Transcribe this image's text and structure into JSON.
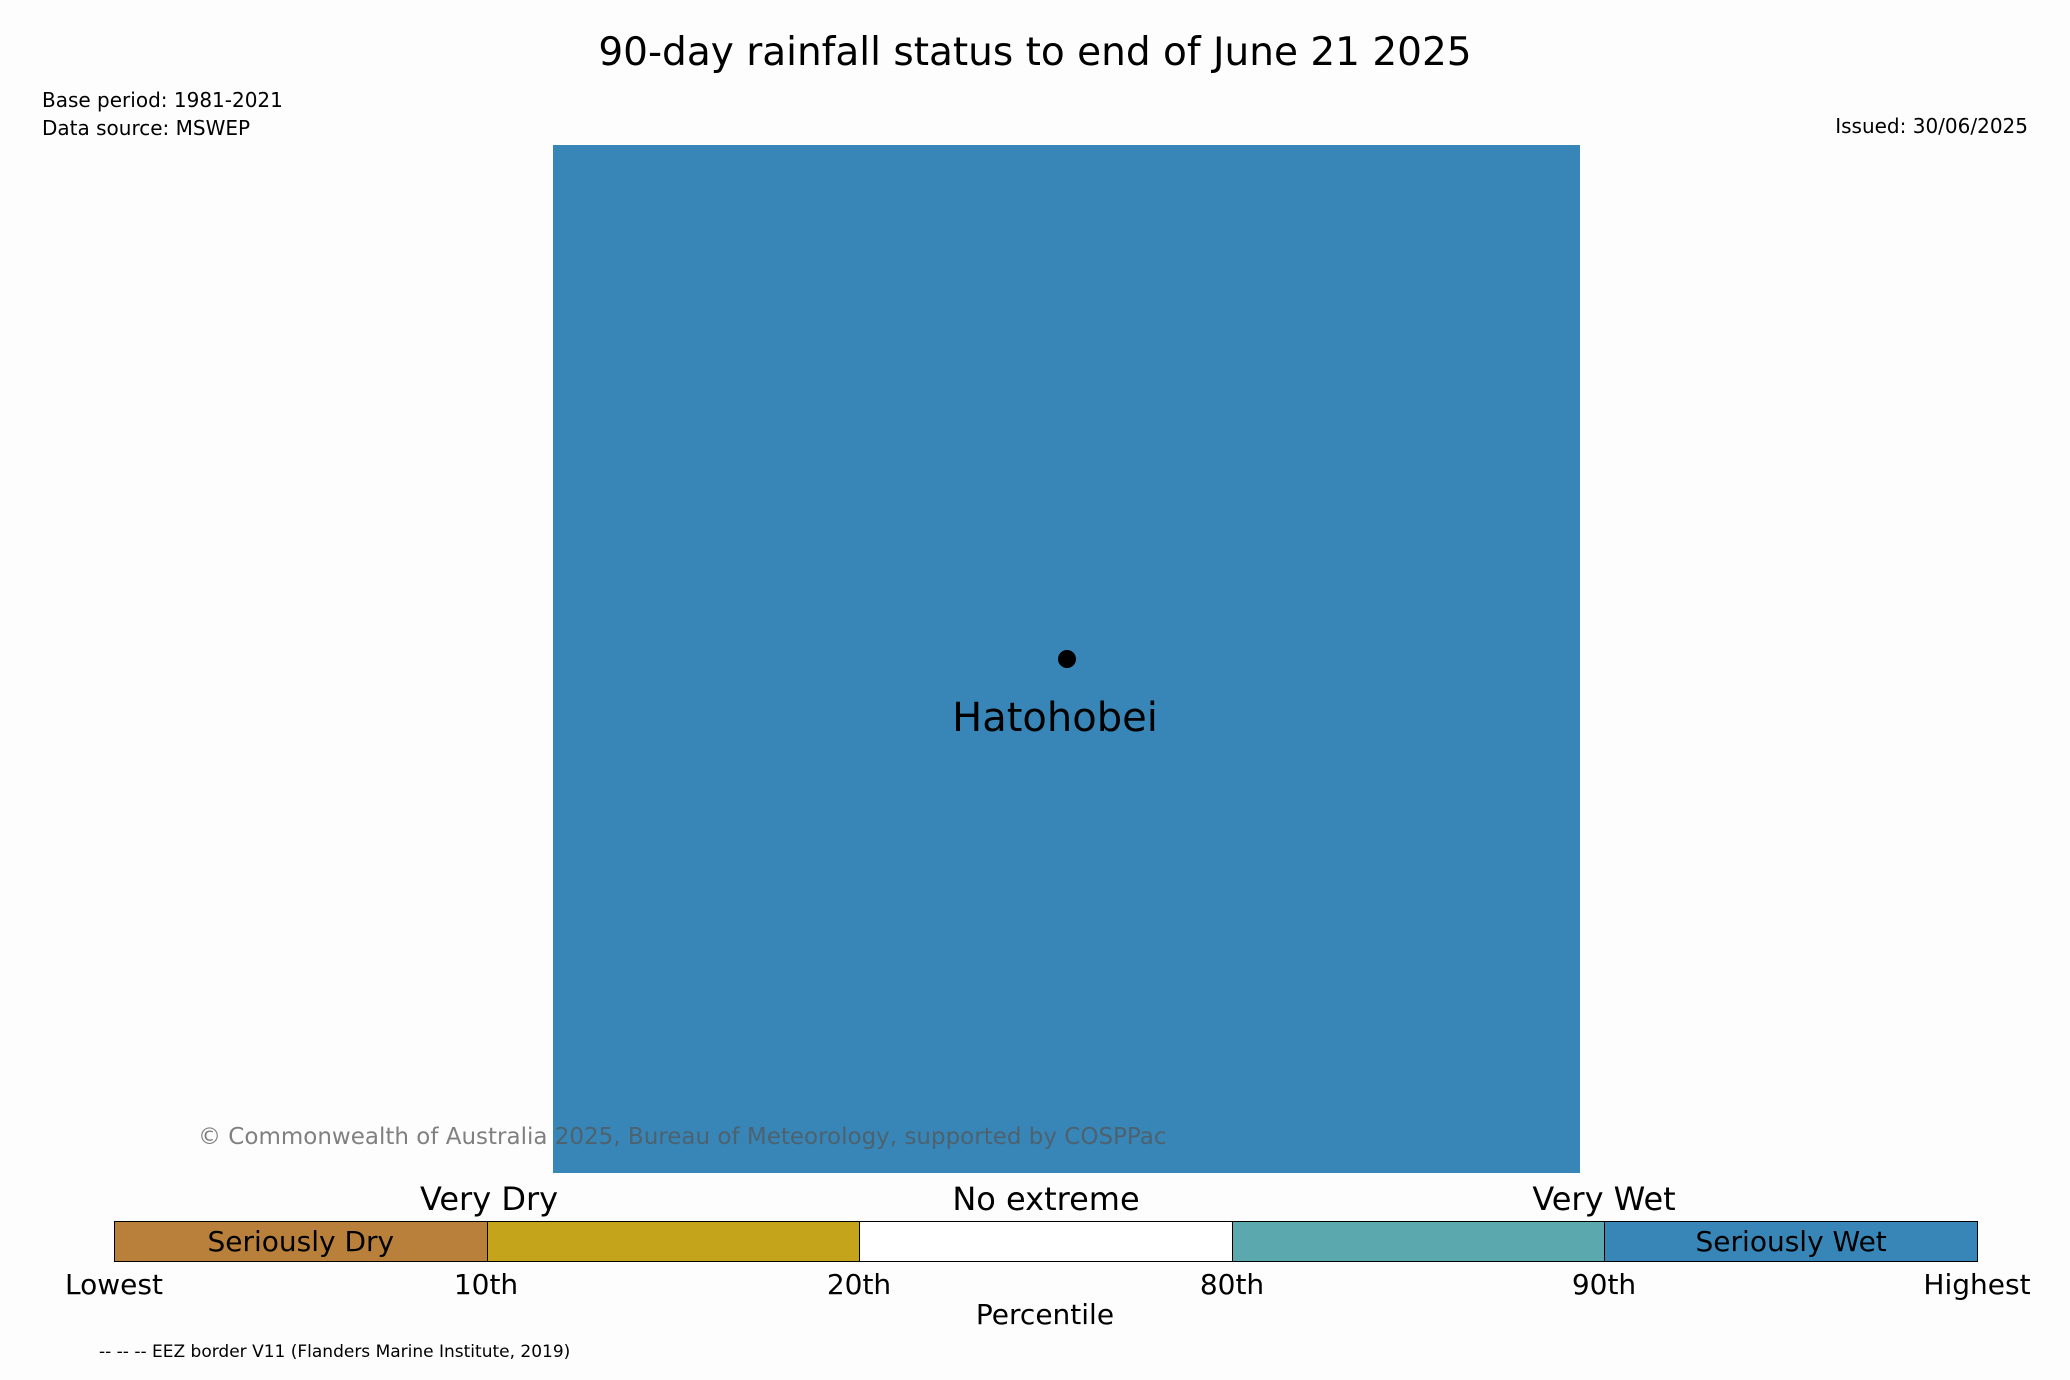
{
  "header": {
    "title": "90-day rainfall status to end of June 21 2025",
    "base_period": "Base period: 1981-2021",
    "data_source": "Data source: MSWEP",
    "issued": "Issued: 30/06/2025"
  },
  "map": {
    "fill_color": "#3786b7",
    "location_name": "Hatohobei",
    "copyright": "© Commonwealth of Australia 2025, Bureau of Meteorology, supported by COSPPac"
  },
  "legend": {
    "groups": [
      "Very Dry",
      "No extreme",
      "Very Wet"
    ],
    "segments": [
      {
        "label": "Seriously Dry",
        "color": "#b8803a"
      },
      {
        "label": "",
        "color": "#c4a41b"
      },
      {
        "label": "",
        "color": "#ffffff"
      },
      {
        "label": "",
        "color": "#5ba8ae"
      },
      {
        "label": "Seriously Wet",
        "color": "#3786b7"
      }
    ],
    "ticks": [
      "Lowest",
      "10th",
      "20th",
      "80th",
      "90th",
      "Highest"
    ],
    "axis_label": "Percentile"
  },
  "footnote": "-- -- -- EEZ border V11 (Flanders Marine Institute, 2019)"
}
